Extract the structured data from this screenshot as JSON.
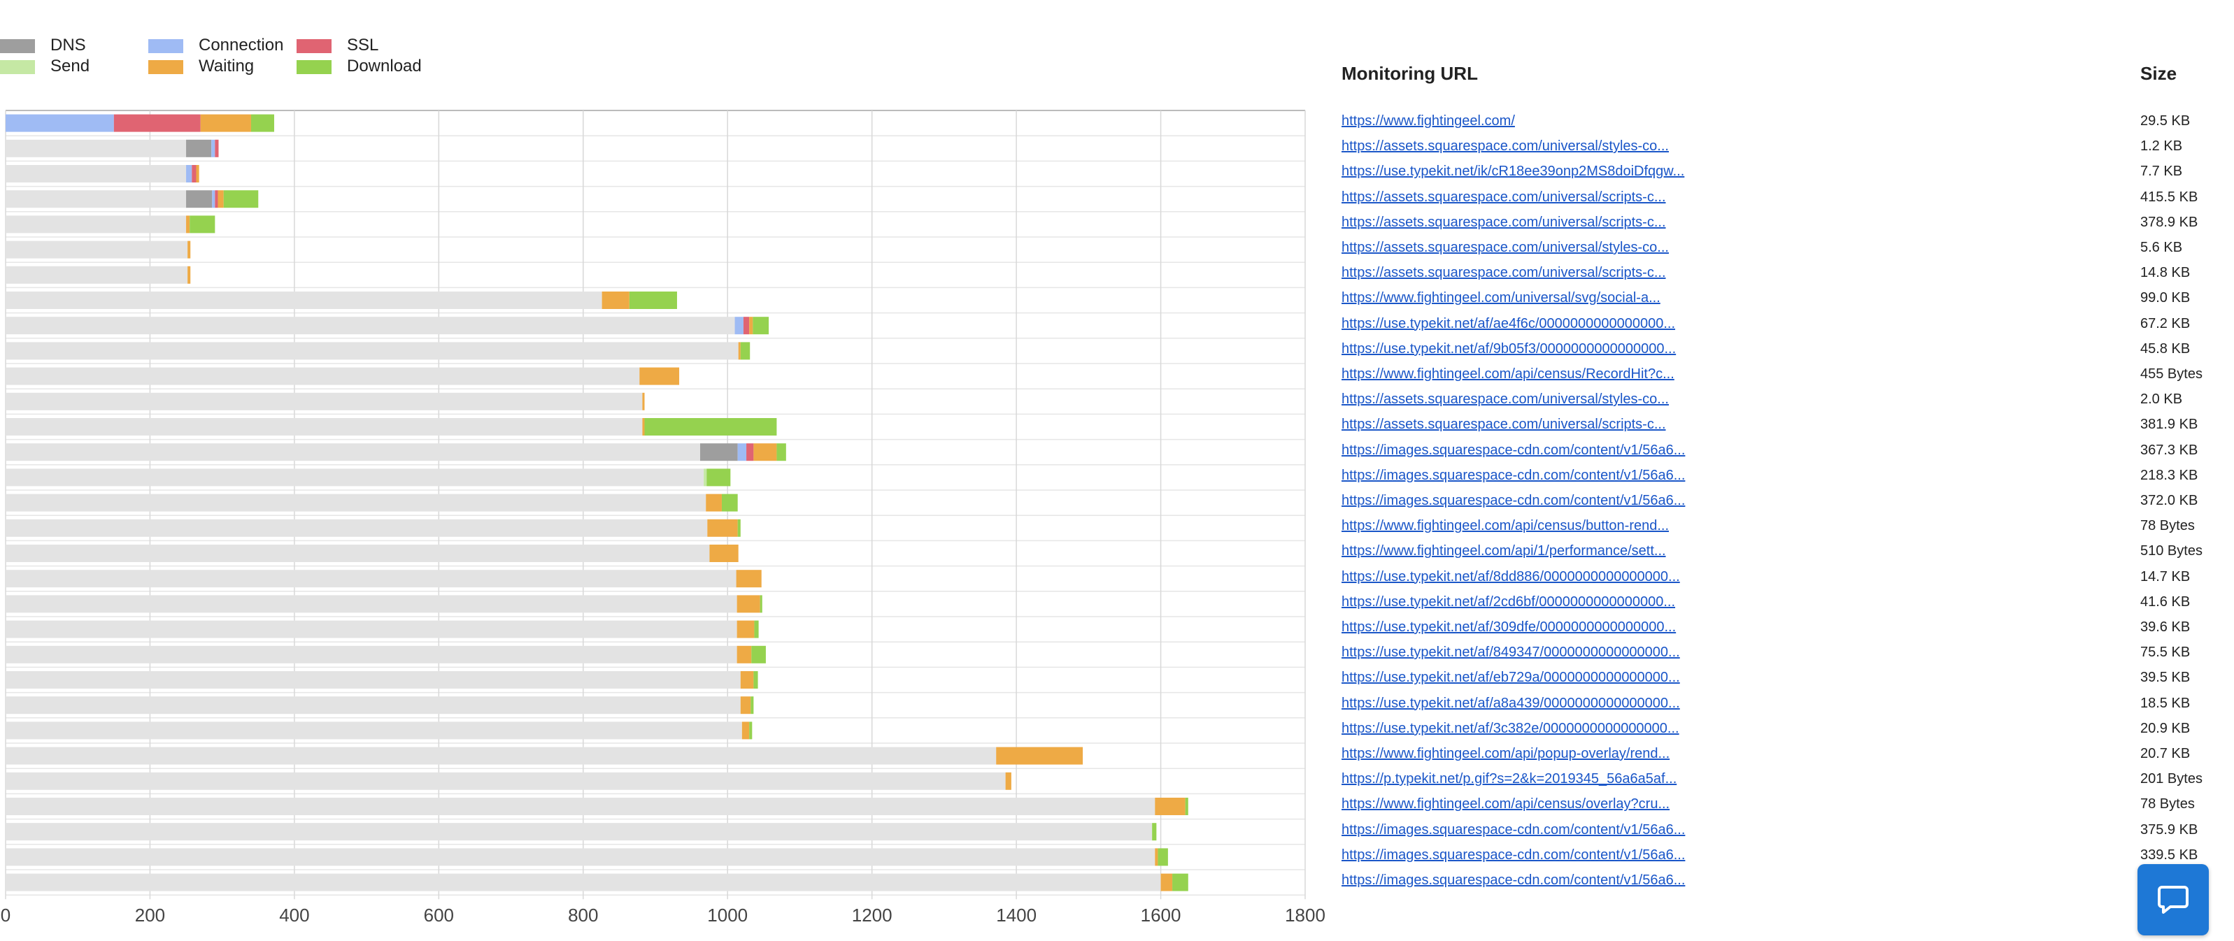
{
  "legend": [
    {
      "label": "DNS",
      "color": "#9e9e9e"
    },
    {
      "label": "Send",
      "color": "#c5e8a4"
    },
    {
      "label": "Connection",
      "color": "#9fbbf4"
    },
    {
      "label": "Waiting",
      "color": "#eeaa45"
    },
    {
      "label": "SSL",
      "color": "#e06472"
    },
    {
      "label": "Download",
      "color": "#95d24f"
    }
  ],
  "table": {
    "url_header": "Monitoring URL",
    "size_header": "Size"
  },
  "chart_data": {
    "type": "bar",
    "orientation": "horizontal-stacked-waterfall",
    "xlim": [
      0,
      1800
    ],
    "xticks": [
      0,
      200,
      400,
      600,
      800,
      1000,
      1200,
      1400,
      1600,
      1800
    ],
    "grid": true,
    "legend_position": "top-left",
    "phase_colors": {
      "blocked": "#e3e3e3",
      "dns": "#9e9e9e",
      "connection": "#9fbbf4",
      "ssl": "#e06472",
      "send": "#c5e8a4",
      "waiting": "#eeaa45",
      "download": "#95d24f"
    },
    "rows": [
      {
        "url": "https://www.fightingeel.com/",
        "size": "29.5 KB",
        "segments": [
          [
            "connection",
            150
          ],
          [
            "ssl",
            120
          ],
          [
            "waiting",
            70
          ],
          [
            "download",
            32
          ]
        ]
      },
      {
        "url": "https://assets.squarespace.com/universal/styles-co...",
        "size": "1.2 KB",
        "segments": [
          [
            "blocked",
            250
          ],
          [
            "dns",
            35
          ],
          [
            "connection",
            5
          ],
          [
            "ssl",
            5
          ]
        ]
      },
      {
        "url": "https://use.typekit.net/ik/cR18ee39onp2MS8doiDfqgw...",
        "size": "7.7 KB",
        "segments": [
          [
            "blocked",
            250
          ],
          [
            "connection",
            8
          ],
          [
            "ssl",
            6
          ],
          [
            "waiting",
            4
          ]
        ]
      },
      {
        "url": "https://assets.squarespace.com/universal/scripts-c...",
        "size": "415.5 KB",
        "segments": [
          [
            "blocked",
            250
          ],
          [
            "dns",
            36
          ],
          [
            "connection",
            4
          ],
          [
            "ssl",
            4
          ],
          [
            "waiting",
            8
          ],
          [
            "download",
            48
          ]
        ]
      },
      {
        "url": "https://assets.squarespace.com/universal/scripts-c...",
        "size": "378.9 KB",
        "segments": [
          [
            "blocked",
            250
          ],
          [
            "waiting",
            5
          ],
          [
            "download",
            35
          ]
        ]
      },
      {
        "url": "https://assets.squarespace.com/universal/styles-co...",
        "size": "5.6 KB",
        "segments": [
          [
            "blocked",
            252
          ],
          [
            "waiting",
            4
          ]
        ]
      },
      {
        "url": "https://assets.squarespace.com/universal/scripts-c...",
        "size": "14.8 KB",
        "segments": [
          [
            "blocked",
            252
          ],
          [
            "waiting",
            4
          ]
        ]
      },
      {
        "url": "https://www.fightingeel.com/universal/svg/social-a...",
        "size": "99.0 KB",
        "segments": [
          [
            "blocked",
            826
          ],
          [
            "waiting",
            38
          ],
          [
            "download",
            66
          ]
        ]
      },
      {
        "url": "https://use.typekit.net/af/ae4f6c/0000000000000000...",
        "size": "67.2 KB",
        "segments": [
          [
            "blocked",
            1010
          ],
          [
            "connection",
            12
          ],
          [
            "ssl",
            8
          ],
          [
            "waiting",
            5
          ],
          [
            "download",
            22
          ]
        ]
      },
      {
        "url": "https://use.typekit.net/af/9b05f3/0000000000000000...",
        "size": "45.8 KB",
        "segments": [
          [
            "blocked",
            1015
          ],
          [
            "waiting",
            3
          ],
          [
            "download",
            13
          ]
        ]
      },
      {
        "url": "https://www.fightingeel.com/api/census/RecordHit?c...",
        "size": "455 Bytes",
        "segments": [
          [
            "blocked",
            878
          ],
          [
            "waiting",
            55
          ]
        ]
      },
      {
        "url": "https://assets.squarespace.com/universal/styles-co...",
        "size": "2.0 KB",
        "segments": [
          [
            "blocked",
            882
          ],
          [
            "waiting",
            3
          ]
        ]
      },
      {
        "url": "https://assets.squarespace.com/universal/scripts-c...",
        "size": "381.9 KB",
        "segments": [
          [
            "blocked",
            882
          ],
          [
            "waiting",
            3
          ],
          [
            "download",
            183
          ]
        ]
      },
      {
        "url": "https://images.squarespace-cdn.com/content/v1/56a6...",
        "size": "367.3 KB",
        "segments": [
          [
            "blocked",
            962
          ],
          [
            "dns",
            52
          ],
          [
            "connection",
            12
          ],
          [
            "ssl",
            10
          ],
          [
            "waiting",
            32
          ],
          [
            "download",
            13
          ]
        ]
      },
      {
        "url": "https://images.squarespace-cdn.com/content/v1/56a6...",
        "size": "218.3 KB",
        "segments": [
          [
            "blocked",
            967
          ],
          [
            "send",
            4
          ],
          [
            "download",
            33
          ]
        ]
      },
      {
        "url": "https://images.squarespace-cdn.com/content/v1/56a6...",
        "size": "372.0 KB",
        "segments": [
          [
            "blocked",
            970
          ],
          [
            "waiting",
            22
          ],
          [
            "download",
            22
          ]
        ]
      },
      {
        "url": "https://www.fightingeel.com/api/census/button-rend...",
        "size": "78 Bytes",
        "segments": [
          [
            "blocked",
            972
          ],
          [
            "waiting",
            42
          ],
          [
            "download",
            4
          ]
        ]
      },
      {
        "url": "https://www.fightingeel.com/api/1/performance/sett...",
        "size": "510 Bytes",
        "segments": [
          [
            "blocked",
            975
          ],
          [
            "waiting",
            40
          ]
        ]
      },
      {
        "url": "https://use.typekit.net/af/8dd886/0000000000000000...",
        "size": "14.7 KB",
        "segments": [
          [
            "blocked",
            1012
          ],
          [
            "waiting",
            35
          ]
        ]
      },
      {
        "url": "https://use.typekit.net/af/2cd6bf/0000000000000000...",
        "size": "41.6 KB",
        "segments": [
          [
            "blocked",
            1013
          ],
          [
            "waiting",
            32
          ],
          [
            "download",
            3
          ]
        ]
      },
      {
        "url": "https://use.typekit.net/af/309dfe/0000000000000000...",
        "size": "39.6 KB",
        "segments": [
          [
            "blocked",
            1013
          ],
          [
            "waiting",
            24
          ],
          [
            "download",
            6
          ]
        ]
      },
      {
        "url": "https://use.typekit.net/af/849347/0000000000000000...",
        "size": "75.5 KB",
        "segments": [
          [
            "blocked",
            1013
          ],
          [
            "waiting",
            20
          ],
          [
            "download",
            20
          ]
        ]
      },
      {
        "url": "https://use.typekit.net/af/eb729a/0000000000000000...",
        "size": "39.5 KB",
        "segments": [
          [
            "blocked",
            1018
          ],
          [
            "waiting",
            18
          ],
          [
            "download",
            6
          ]
        ]
      },
      {
        "url": "https://use.typekit.net/af/a8a439/0000000000000000...",
        "size": "18.5 KB",
        "segments": [
          [
            "blocked",
            1018
          ],
          [
            "waiting",
            14
          ],
          [
            "download",
            4
          ]
        ]
      },
      {
        "url": "https://use.typekit.net/af/3c382e/0000000000000000...",
        "size": "20.9 KB",
        "segments": [
          [
            "blocked",
            1020
          ],
          [
            "waiting",
            10
          ],
          [
            "download",
            4
          ]
        ]
      },
      {
        "url": "https://www.fightingeel.com/api/popup-overlay/rend...",
        "size": "20.7 KB",
        "segments": [
          [
            "blocked",
            1372
          ],
          [
            "waiting",
            120
          ]
        ]
      },
      {
        "url": "https://p.typekit.net/p.gif?s=2&k=2019345_56a6a5af...",
        "size": "201 Bytes",
        "segments": [
          [
            "blocked",
            1385
          ],
          [
            "waiting",
            8
          ]
        ]
      },
      {
        "url": "https://www.fightingeel.com/api/census/overlay?cru...",
        "size": "78 Bytes",
        "segments": [
          [
            "blocked",
            1592
          ],
          [
            "waiting",
            42
          ],
          [
            "download",
            4
          ]
        ]
      },
      {
        "url": "https://images.squarespace-cdn.com/content/v1/56a6...",
        "size": "375.9 KB",
        "segments": [
          [
            "blocked",
            1588
          ],
          [
            "download",
            6
          ]
        ]
      },
      {
        "url": "https://images.squarespace-cdn.com/content/v1/56a6...",
        "size": "339.5 KB",
        "segments": [
          [
            "blocked",
            1592
          ],
          [
            "waiting",
            4
          ],
          [
            "download",
            14
          ]
        ]
      },
      {
        "url": "https://images.squarespace-cdn.com/content/v1/56a6...",
        "size": "",
        "segments": [
          [
            "blocked",
            1600
          ],
          [
            "waiting",
            16
          ],
          [
            "download",
            22
          ]
        ]
      }
    ]
  },
  "chat": {
    "icon": "chat-bubble-icon",
    "color": "#1e78d6"
  }
}
